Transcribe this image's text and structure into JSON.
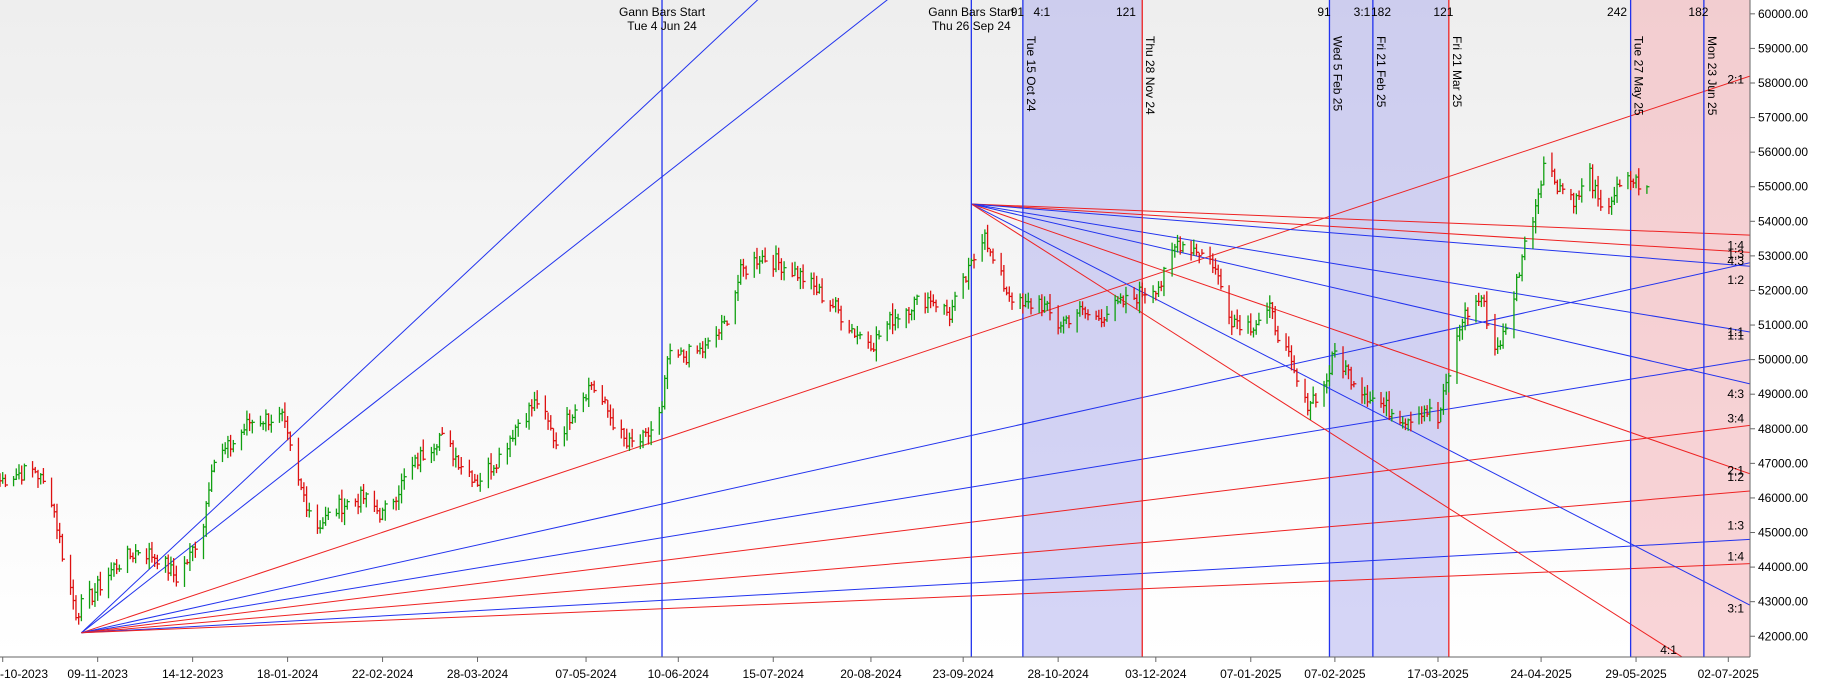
{
  "chart_data": {
    "type": "candlestick",
    "title": "",
    "xlabel": "",
    "ylabel": "",
    "ylim": [
      41400,
      60400
    ],
    "xlim": [
      "2023-10-04",
      "2025-07-10"
    ],
    "grid": false,
    "legend": "none",
    "colors": {
      "up": "#11a011",
      "down": "#dd1111",
      "blue_line": "#2233ee",
      "red_line": "#ee2222",
      "blue_band": "#b3b3ee",
      "red_band": "#f5b8bc",
      "background_top": "#f0f0f0",
      "background_bottom": "#ffffff"
    },
    "x_tick_labels": [
      {
        "date": "2023-10-05",
        "label": "-10-2023"
      },
      {
        "date": "2023-11-09",
        "label": "09-11-2023"
      },
      {
        "date": "2023-12-14",
        "label": "14-12-2023"
      },
      {
        "date": "2024-01-18",
        "label": "18-01-2024"
      },
      {
        "date": "2024-02-22",
        "label": "22-02-2024"
      },
      {
        "date": "2024-03-28",
        "label": "28-03-2024"
      },
      {
        "date": "2024-05-07",
        "label": "07-05-2024"
      },
      {
        "date": "2024-06-10",
        "label": "10-06-2024"
      },
      {
        "date": "2024-07-15",
        "label": "15-07-2024"
      },
      {
        "date": "2024-08-20",
        "label": "20-08-2024"
      },
      {
        "date": "2024-09-23",
        "label": "23-09-2024"
      },
      {
        "date": "2024-10-28",
        "label": "28-10-2024"
      },
      {
        "date": "2024-12-03",
        "label": "03-12-2024"
      },
      {
        "date": "2025-01-07",
        "label": "07-01-2025"
      },
      {
        "date": "2025-02-07",
        "label": "07-02-2025"
      },
      {
        "date": "2025-03-17",
        "label": "17-03-2025"
      },
      {
        "date": "2025-04-24",
        "label": "24-04-2025"
      },
      {
        "date": "2025-05-29",
        "label": "29-05-2025"
      },
      {
        "date": "2025-07-02",
        "label": "02-07-2025"
      }
    ],
    "y_tick_labels": [
      {
        "value": 42000,
        "label": "42000.00"
      },
      {
        "value": 43000,
        "label": "43000.00"
      },
      {
        "value": 44000,
        "label": "44000.00"
      },
      {
        "value": 45000,
        "label": "45000.00"
      },
      {
        "value": 46000,
        "label": "46000.00"
      },
      {
        "value": 47000,
        "label": "47000.00"
      },
      {
        "value": 48000,
        "label": "48000.00"
      },
      {
        "value": 49000,
        "label": "49000.00"
      },
      {
        "value": 50000,
        "label": "50000.00"
      },
      {
        "value": 51000,
        "label": "51000.00"
      },
      {
        "value": 52000,
        "label": "52000.00"
      },
      {
        "value": 53000,
        "label": "53000.00"
      },
      {
        "value": 54000,
        "label": "54000.00"
      },
      {
        "value": 55000,
        "label": "55000.00"
      },
      {
        "value": 56000,
        "label": "56000.00"
      },
      {
        "value": 57000,
        "label": "57000.00"
      },
      {
        "value": 58000,
        "label": "58000.00"
      },
      {
        "value": 59000,
        "label": "59000.00"
      },
      {
        "value": 60000,
        "label": "60000.00"
      }
    ],
    "price_path": [
      [
        "2023-10-04",
        46500
      ],
      [
        "2023-10-10",
        46700
      ],
      [
        "2023-10-17",
        46800
      ],
      [
        "2023-10-23",
        46000
      ],
      [
        "2023-10-27",
        44400
      ],
      [
        "2023-11-01",
        42700
      ],
      [
        "2023-11-07",
        43200
      ],
      [
        "2023-11-15",
        44000
      ],
      [
        "2023-11-24",
        44500
      ],
      [
        "2023-12-01",
        44300
      ],
      [
        "2023-12-08",
        43700
      ],
      [
        "2023-12-13",
        44300
      ],
      [
        "2023-12-18",
        45300
      ],
      [
        "2023-12-21",
        47000
      ],
      [
        "2023-12-28",
        47500
      ],
      [
        "2024-01-04",
        48200
      ],
      [
        "2024-01-10",
        48300
      ],
      [
        "2024-01-16",
        48300
      ],
      [
        "2024-01-22",
        46400
      ],
      [
        "2024-01-29",
        45200
      ],
      [
        "2024-02-07",
        45800
      ],
      [
        "2024-02-15",
        46000
      ],
      [
        "2024-02-22",
        45500
      ],
      [
        "2024-02-29",
        46400
      ],
      [
        "2024-03-07",
        47200
      ],
      [
        "2024-03-14",
        47800
      ],
      [
        "2024-03-21",
        47100
      ],
      [
        "2024-03-28",
        46500
      ],
      [
        "2024-04-05",
        47200
      ],
      [
        "2024-04-12",
        48200
      ],
      [
        "2024-04-19",
        48800
      ],
      [
        "2024-04-26",
        47600
      ],
      [
        "2024-05-03",
        48700
      ],
      [
        "2024-05-09",
        49300
      ],
      [
        "2024-05-15",
        48500
      ],
      [
        "2024-05-22",
        47500
      ],
      [
        "2024-05-29",
        47700
      ],
      [
        "2024-06-04",
        48500
      ],
      [
        "2024-06-06",
        50000
      ],
      [
        "2024-06-12",
        50100
      ],
      [
        "2024-06-20",
        50300
      ],
      [
        "2024-06-27",
        51000
      ],
      [
        "2024-07-03",
        52500
      ],
      [
        "2024-07-10",
        53000
      ],
      [
        "2024-07-17",
        52800
      ],
      [
        "2024-07-24",
        52500
      ],
      [
        "2024-07-31",
        52000
      ],
      [
        "2024-08-07",
        51500
      ],
      [
        "2024-08-14",
        50800
      ],
      [
        "2024-08-21",
        50500
      ],
      [
        "2024-08-28",
        51200
      ],
      [
        "2024-09-04",
        51600
      ],
      [
        "2024-09-11",
        51800
      ],
      [
        "2024-09-18",
        51300
      ],
      [
        "2024-09-25",
        52500
      ],
      [
        "2024-10-01",
        53800
      ],
      [
        "2024-10-03",
        53000
      ],
      [
        "2024-10-09",
        52000
      ],
      [
        "2024-10-15",
        51500
      ],
      [
        "2024-10-21",
        51700
      ],
      [
        "2024-10-28",
        51000
      ],
      [
        "2024-11-04",
        51400
      ],
      [
        "2024-11-11",
        51200
      ],
      [
        "2024-11-18",
        51500
      ],
      [
        "2024-11-25",
        51800
      ],
      [
        "2024-11-29",
        52000
      ],
      [
        "2024-12-05",
        52200
      ],
      [
        "2024-12-11",
        53400
      ],
      [
        "2024-12-18",
        53200
      ],
      [
        "2024-12-24",
        52800
      ],
      [
        "2024-12-31",
        51200
      ],
      [
        "2025-01-07",
        51000
      ],
      [
        "2025-01-14",
        51400
      ],
      [
        "2025-01-20",
        50200
      ],
      [
        "2025-01-27",
        48700
      ],
      [
        "2025-02-03",
        49200
      ],
      [
        "2025-02-07",
        50200
      ],
      [
        "2025-02-12",
        49600
      ],
      [
        "2025-02-19",
        49000
      ],
      [
        "2025-02-26",
        48600
      ],
      [
        "2025-03-05",
        48300
      ],
      [
        "2025-03-12",
        48600
      ],
      [
        "2025-03-17",
        48200
      ],
      [
        "2025-03-21",
        49600
      ],
      [
        "2025-03-26",
        51200
      ],
      [
        "2025-04-02",
        51800
      ],
      [
        "2025-04-07",
        50300
      ],
      [
        "2025-04-11",
        50800
      ],
      [
        "2025-04-17",
        53000
      ],
      [
        "2025-04-22",
        54500
      ],
      [
        "2025-04-25",
        55700
      ],
      [
        "2025-04-30",
        55100
      ],
      [
        "2025-05-07",
        54600
      ],
      [
        "2025-05-12",
        55400
      ],
      [
        "2025-05-16",
        54200
      ],
      [
        "2025-05-21",
        54800
      ],
      [
        "2025-05-27",
        55200
      ],
      [
        "2025-06-02",
        55000
      ]
    ],
    "gann_origin_1": {
      "date": "2023-11-03",
      "value": 42100
    },
    "gann_origin_2": {
      "date": "2024-09-26",
      "value": 54500
    },
    "gann_fan_1": [
      {
        "end_date": "2025-01-24",
        "end_value": 75000,
        "color": "blue"
      },
      {
        "end_date": "2025-07-10",
        "end_value": 80000,
        "color": "blue"
      },
      {
        "end_date": "2025-07-10",
        "end_value": 58200,
        "color": "red"
      },
      {
        "end_date": "2025-07-10",
        "end_value": 52800,
        "color": "blue"
      },
      {
        "end_date": "2025-07-10",
        "end_value": 50000,
        "color": "blue"
      },
      {
        "end_date": "2025-07-10",
        "end_value": 48100,
        "color": "red"
      },
      {
        "end_date": "2025-07-10",
        "end_value": 46200,
        "color": "red"
      },
      {
        "end_date": "2025-07-10",
        "end_value": 44800,
        "color": "blue"
      },
      {
        "end_date": "2025-07-10",
        "end_value": 44100,
        "color": "red"
      }
    ],
    "gann_fan_2": [
      {
        "end_date": "2025-07-10",
        "end_value": 53600,
        "color": "red"
      },
      {
        "end_date": "2025-07-10",
        "end_value": 53100,
        "color": "red"
      },
      {
        "end_date": "2025-07-10",
        "end_value": 52700,
        "color": "blue"
      },
      {
        "end_date": "2025-07-10",
        "end_value": 50800,
        "color": "blue"
      },
      {
        "end_date": "2025-07-10",
        "end_value": 49300,
        "color": "blue"
      },
      {
        "end_date": "2025-07-10",
        "end_value": 46700,
        "color": "red"
      },
      {
        "end_date": "2025-07-10",
        "end_value": 42900,
        "color": "blue"
      },
      {
        "end_date": "2025-06-15",
        "end_value": 41400,
        "color": "red"
      }
    ],
    "ratio_labels": [
      {
        "label": "2:1",
        "value": 58100
      },
      {
        "label": "1:4",
        "value": 53300
      },
      {
        "label": "1:3",
        "value": 53050
      },
      {
        "label": "4:3",
        "value": 52850
      },
      {
        "label": "1:2",
        "value": 52300
      },
      {
        "label": "1:1",
        "value": 50800
      },
      {
        "label": "1:1",
        "value": 50700
      },
      {
        "label": "4:3",
        "value": 49000
      },
      {
        "label": "3:4",
        "value": 48300
      },
      {
        "label": "2:1",
        "value": 46800
      },
      {
        "label": "1:2",
        "value": 46600
      },
      {
        "label": "1:3",
        "value": 45200
      },
      {
        "label": "1:4",
        "value": 44300
      },
      {
        "label": "3:1",
        "value": 42800
      }
    ],
    "bottom_label": {
      "label": "4:1",
      "date": "2025-06-10",
      "value": 41600
    },
    "vertical_lines": [
      {
        "date": "2024-06-04",
        "color": "blue",
        "label": "",
        "header": [
          "Gann Bars Start",
          "Tue 4 Jun 24"
        ]
      },
      {
        "date": "2024-09-26",
        "color": "blue",
        "label": "",
        "header": [
          "Gann Bars Start",
          "Thu 26 Sep 24"
        ]
      },
      {
        "date": "2024-10-15",
        "color": "blue",
        "label": "Tue 15 Oct 24",
        "header": []
      },
      {
        "date": "2024-11-28",
        "color": "red",
        "label": "Thu 28 Nov 24",
        "header": []
      },
      {
        "date": "2025-02-05",
        "color": "blue",
        "label": "Wed 5 Feb 25",
        "header": []
      },
      {
        "date": "2025-02-21",
        "color": "blue",
        "label": "Fri 21 Feb 25",
        "header": []
      },
      {
        "date": "2025-03-21",
        "color": "red",
        "label": "Fri 21 Mar 25",
        "header": []
      },
      {
        "date": "2025-05-27",
        "color": "blue",
        "label": "Tue 27 May 25",
        "header": []
      },
      {
        "date": "2025-06-23",
        "color": "blue",
        "label": "Mon 23 Jun 25",
        "header": []
      }
    ],
    "bands": [
      {
        "from": "2024-10-15",
        "to": "2024-11-28",
        "color": "blue"
      },
      {
        "from": "2025-02-05",
        "to": "2025-03-21",
        "color": "blue"
      },
      {
        "from": "2025-05-27",
        "to": "2025-07-10",
        "color": "red"
      }
    ],
    "top_counts": [
      {
        "label": "91",
        "date": "2024-10-13"
      },
      {
        "label": "4:1",
        "date": "2024-10-22"
      },
      {
        "label": "121",
        "date": "2024-11-22"
      },
      {
        "label": "91",
        "date": "2025-02-03"
      },
      {
        "label": "3:1",
        "date": "2025-02-17"
      },
      {
        "label": "182",
        "date": "2025-02-24"
      },
      {
        "label": "121",
        "date": "2025-03-19"
      },
      {
        "label": "242",
        "date": "2025-05-22"
      },
      {
        "label": "182",
        "date": "2025-06-21"
      }
    ]
  }
}
